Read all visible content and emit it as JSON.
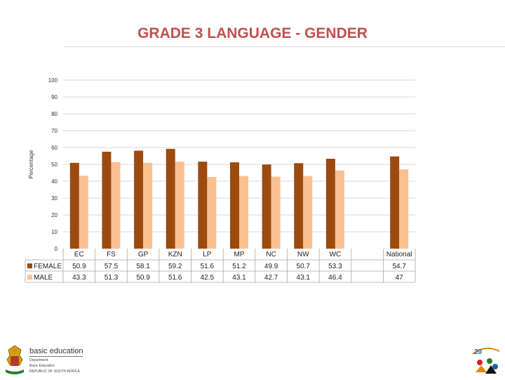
{
  "title": "GRADE 3 LANGUAGE - GENDER",
  "colors": {
    "female": "#9c4a0e",
    "male": "#fac090",
    "title": "#c0504d",
    "grid": "#d9d9d9"
  },
  "chart_data": {
    "type": "bar",
    "title": "GRADE 3 LANGUAGE - GENDER",
    "ylabel": "Percentage",
    "xlabel": "",
    "ylim": [
      0,
      100
    ],
    "yticks": [
      0,
      10,
      20,
      30,
      40,
      50,
      60,
      70,
      80,
      90,
      100
    ],
    "grid": true,
    "legend": "in data table",
    "categories": [
      "EC",
      "FS",
      "GP",
      "KZN",
      "LP",
      "MP",
      "NC",
      "NW",
      "WC",
      "",
      "National"
    ],
    "series": [
      {
        "name": "FEMALE",
        "values": [
          50.9,
          57.5,
          58.1,
          59.2,
          51.6,
          51.2,
          49.9,
          50.7,
          53.3,
          null,
          54.7
        ],
        "labels": [
          "50.9",
          "57.5",
          "58.1",
          "59.2",
          "51.6",
          "51.2",
          "49.9",
          "50.7",
          "53.3",
          "",
          "54.7"
        ]
      },
      {
        "name": "MALE",
        "values": [
          43.3,
          51.3,
          50.9,
          51.6,
          42.5,
          43.1,
          42.7,
          43.1,
          46.4,
          null,
          47
        ],
        "labels": [
          "43.3",
          "51.3",
          "50.9",
          "51.6",
          "42.5",
          "43.1",
          "42.7",
          "43.1",
          "46.4",
          "",
          "47"
        ]
      }
    ]
  },
  "footer": {
    "logo_left": {
      "main": "basic education",
      "lines": [
        "Department:",
        "Basic Education",
        "REPUBLIC OF SOUTH AFRICA"
      ]
    },
    "logo_right": {
      "text": "20",
      "icon": "twenty-years-freedom-logo"
    }
  }
}
